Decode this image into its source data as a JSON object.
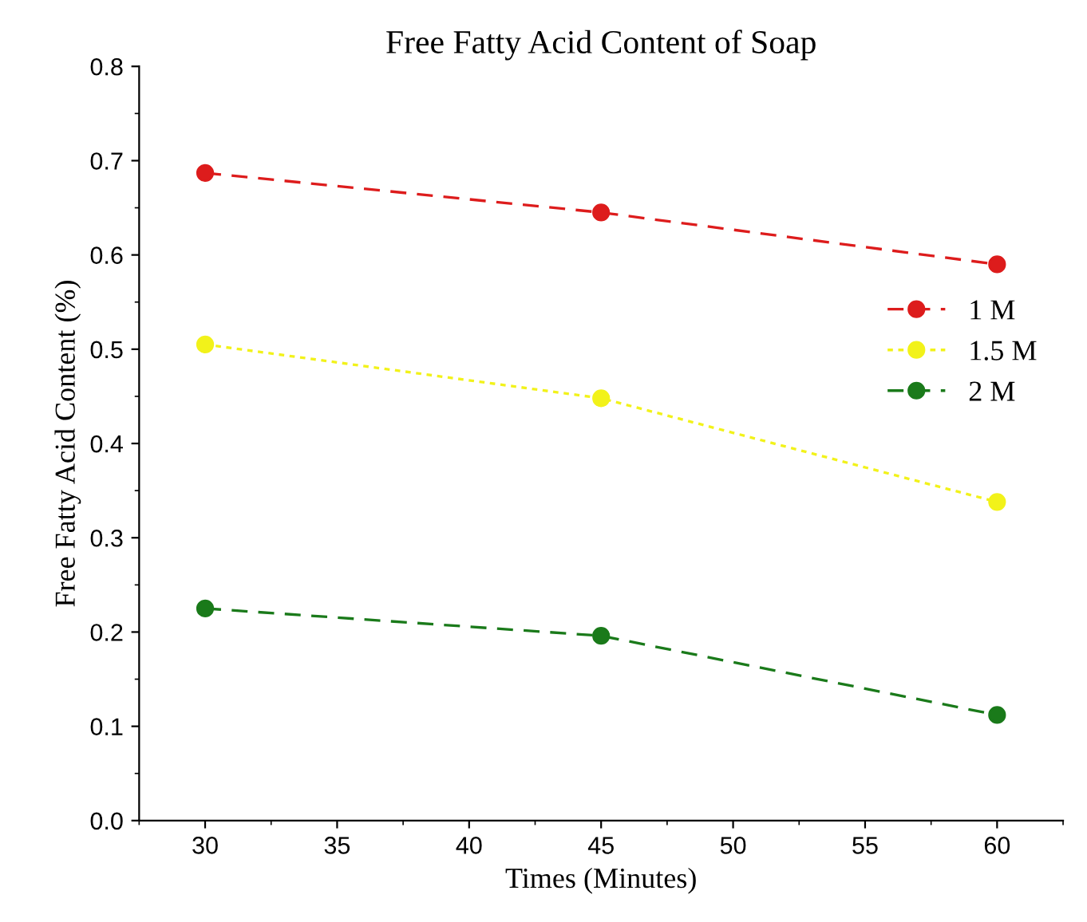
{
  "chart_data": {
    "type": "line",
    "title": "Free Fatty Acid Content of Soap",
    "xlabel": "Times (Minutes)",
    "ylabel": "Free Fatty Acid Content (%)",
    "x": [
      30,
      45,
      60
    ],
    "series": [
      {
        "name": "1 M",
        "color": "#dd1c1c",
        "values": [
          0.687,
          0.645,
          0.59
        ],
        "line_style": "dashed"
      },
      {
        "name": "1.5 M",
        "color": "#f2f21a",
        "values": [
          0.505,
          0.448,
          0.338
        ],
        "line_style": "dotted"
      },
      {
        "name": "2 M",
        "color": "#1a7a1a",
        "values": [
          0.225,
          0.196,
          0.112
        ],
        "line_style": "dashed"
      }
    ],
    "xlim": [
      27.5,
      62.5
    ],
    "xticks": [
      30,
      35,
      40,
      45,
      50,
      55,
      60
    ],
    "ylim": [
      0.0,
      0.8
    ],
    "yticks": [
      {
        "value": 0.0,
        "label": "0.0"
      },
      0.1,
      0.2,
      0.3,
      0.4,
      0.5,
      0.6,
      0.7,
      0.8
    ],
    "marker": "circle",
    "grid": false,
    "legend": "right"
  }
}
